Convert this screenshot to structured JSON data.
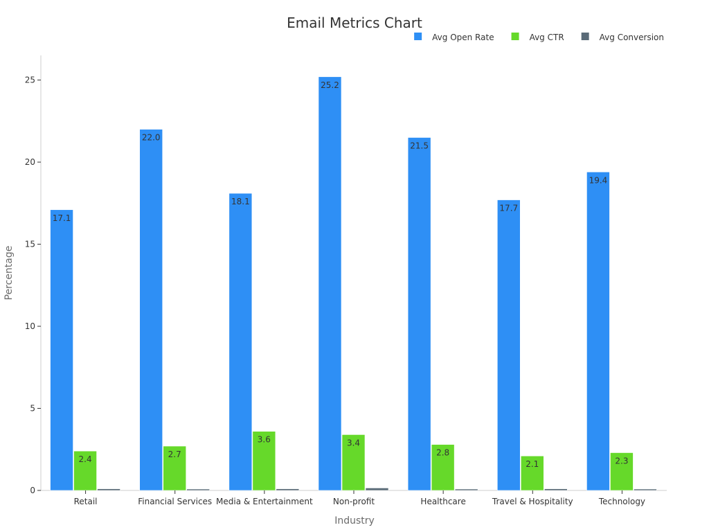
{
  "chart_data": {
    "type": "bar",
    "title": "Email Metrics Chart",
    "xlabel": "Industry",
    "ylabel": "Percentage",
    "categories": [
      "Retail",
      "Financial Services",
      "Media & Entertainment",
      "Non-profit",
      "Healthcare",
      "Travel & Hospitality",
      "Technology"
    ],
    "series": [
      {
        "name": "Avg Open Rate",
        "color": "#2e8ff5",
        "values": [
          17.1,
          22.0,
          18.1,
          25.2,
          21.5,
          17.7,
          19.4
        ],
        "labels": [
          "17.1",
          "22.0",
          "18.1",
          "25.2",
          "21.5",
          "17.7",
          "19.4"
        ]
      },
      {
        "name": "Avg CTR",
        "color": "#66d92a",
        "values": [
          2.4,
          2.7,
          3.6,
          3.4,
          2.8,
          2.1,
          2.3
        ],
        "labels": [
          "2.4",
          "2.7",
          "3.6",
          "3.4",
          "2.8",
          "2.1",
          "2.3"
        ]
      },
      {
        "name": "Avg Conversion",
        "color": "#5a6b78",
        "values": [
          0.1,
          0.05,
          0.1,
          0.15,
          0.08,
          0.1,
          0.08
        ]
      }
    ],
    "ylim": [
      0,
      26.5
    ],
    "yticks": [
      0,
      5,
      10,
      15,
      20,
      25
    ],
    "grid": false,
    "legend_position": "top-right"
  }
}
